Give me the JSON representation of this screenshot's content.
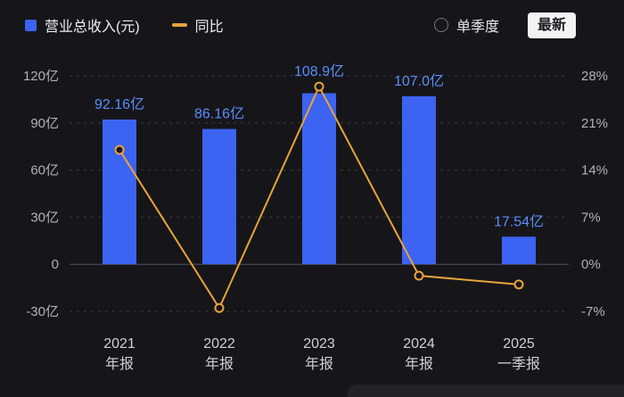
{
  "colors": {
    "background": "#16161a",
    "bar": "#3c63f2",
    "bar_label": "#5a8df8",
    "line": "#e8a33c",
    "grid": "#38383f",
    "zero_line": "#50505a",
    "tick_text": "#aeb2ba",
    "x_label_text": "#ccd0d8",
    "latest_button_bg": "#f2f3f5"
  },
  "legend": {
    "revenue_label": "营业总收入(元)",
    "yoy_label": "同比"
  },
  "controls": {
    "quarter_label": "单季度",
    "latest_label": "最新"
  },
  "chart_data": {
    "type": "bar",
    "note": "bar series with overlaid line series (dual axis)",
    "categories": [
      [
        "2021",
        "年报"
      ],
      [
        "2022",
        "年报"
      ],
      [
        "2023",
        "年报"
      ],
      [
        "2024",
        "年报"
      ],
      [
        "2025",
        "一季报"
      ]
    ],
    "bar_series": {
      "name": "营业总收入(元)",
      "unit": "亿",
      "values": [
        92.16,
        86.16,
        108.9,
        107.0,
        17.54
      ],
      "labels": [
        "92.16亿",
        "86.16亿",
        "108.9亿",
        "107.0亿",
        "17.54亿"
      ]
    },
    "line_series": {
      "name": "同比",
      "unit": "%",
      "values": [
        17.0,
        -6.5,
        26.4,
        -1.7,
        -3.0
      ]
    },
    "left_axis": {
      "ticks": [
        "120亿",
        "90亿",
        "60亿",
        "30亿",
        "0",
        "-30亿"
      ],
      "max": 120,
      "min": -30
    },
    "right_axis": {
      "ticks": [
        "28%",
        "21%",
        "14%",
        "7%",
        "0%",
        "-7%"
      ],
      "max": 28,
      "min": -7
    },
    "grid": "dashed horizontal",
    "legend_position": "top-left"
  }
}
